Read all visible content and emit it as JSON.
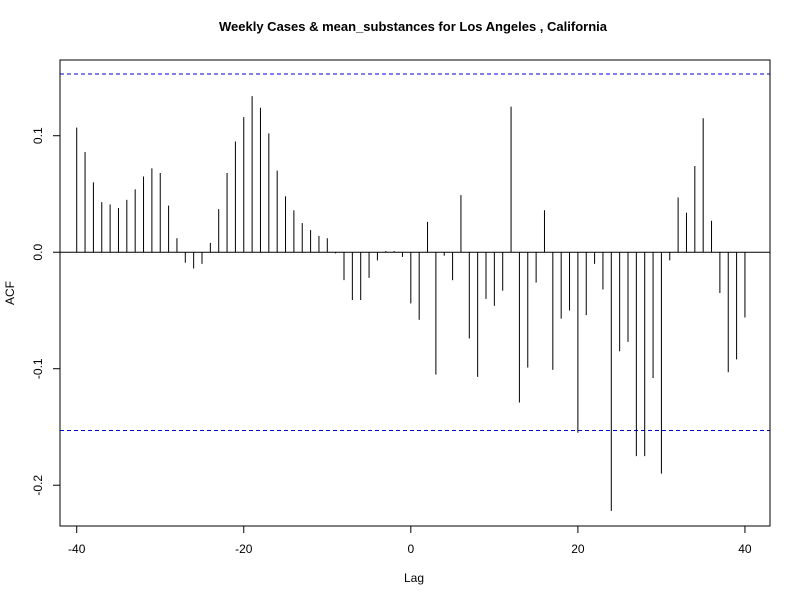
{
  "chart_data": {
    "type": "bar",
    "subtype": "acf-correlogram",
    "title": "Weekly Cases & mean_substances for Los Angeles , California",
    "xlabel": "Lag",
    "ylabel": "ACF",
    "xlim": [
      -42,
      43
    ],
    "ylim": [
      -0.235,
      0.165
    ],
    "x_ticks": [
      -40,
      -20,
      0,
      20,
      40
    ],
    "x_tick_labels": [
      "-40",
      "-20",
      "0",
      "20",
      "40"
    ],
    "y_ticks": [
      -0.2,
      -0.1,
      0.0,
      0.1
    ],
    "y_tick_labels": [
      "-0.2",
      "-0.1",
      "0.0",
      "0.1"
    ],
    "grid": false,
    "confidence_limit": 0.153,
    "colors": {
      "bars": "#000000",
      "confidence": "#0000cc",
      "axes": "#000000"
    },
    "series": [
      {
        "lags": [
          -40,
          -39,
          -38,
          -37,
          -36,
          -35,
          -34,
          -33,
          -32,
          -31,
          -30,
          -29,
          -28,
          -27,
          -26,
          -25,
          -24,
          -23,
          -22,
          -21,
          -20,
          -19,
          -18,
          -17,
          -16,
          -15,
          -14,
          -13,
          -12,
          -11,
          -10,
          -9,
          -8,
          -7,
          -6,
          -5,
          -4,
          -3,
          -2,
          -1,
          0,
          1,
          2,
          3,
          4,
          5,
          6,
          7,
          8,
          9,
          10,
          11,
          12,
          13,
          14,
          15,
          16,
          17,
          18,
          19,
          20,
          21,
          22,
          23,
          24,
          25,
          26,
          27,
          28,
          29,
          30,
          31,
          32,
          33,
          34,
          35,
          36,
          37,
          38,
          39,
          40
        ],
        "values": [
          0.107,
          0.086,
          0.06,
          0.043,
          0.041,
          0.038,
          0.045,
          0.054,
          0.065,
          0.072,
          0.068,
          0.04,
          0.012,
          -0.009,
          -0.014,
          -0.01,
          0.008,
          0.037,
          0.068,
          0.095,
          0.116,
          0.134,
          0.124,
          0.102,
          0.07,
          0.048,
          0.036,
          0.025,
          0.019,
          0.014,
          0.012,
          -0.001,
          -0.024,
          -0.041,
          -0.041,
          -0.022,
          -0.007,
          0.001,
          0.001,
          -0.004,
          -0.044,
          -0.058,
          0.026,
          -0.105,
          -0.003,
          -0.024,
          0.049,
          -0.074,
          -0.107,
          -0.04,
          -0.046,
          -0.033,
          0.125,
          -0.129,
          -0.099,
          -0.026,
          0.036,
          -0.101,
          -0.057,
          -0.05,
          -0.155,
          -0.054,
          -0.01,
          -0.032,
          -0.222,
          -0.085,
          -0.077,
          -0.175,
          -0.175,
          -0.108,
          -0.19,
          -0.007,
          0.047,
          0.034,
          0.074,
          0.115,
          0.027,
          -0.035,
          -0.103,
          -0.092,
          -0.056
        ]
      }
    ]
  }
}
